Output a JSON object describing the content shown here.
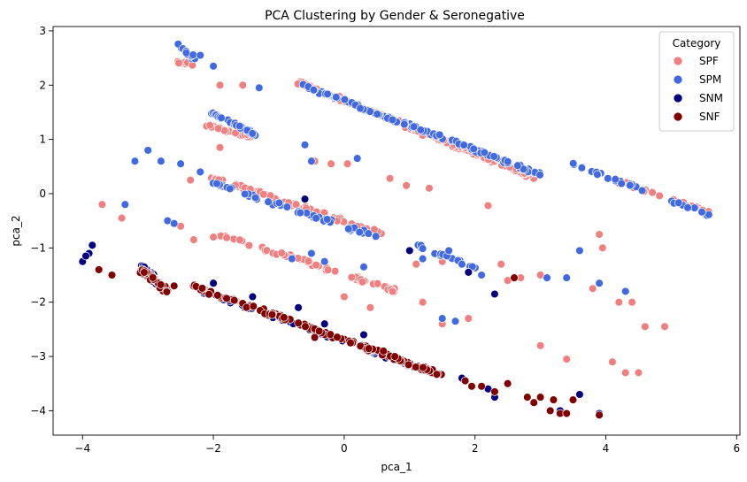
{
  "chart_data": {
    "type": "scatter",
    "title": "PCA Clustering by Gender & Seronegative",
    "xlabel": "pca_1",
    "ylabel": "pca_2",
    "xlim": [
      -4.45,
      6.05
    ],
    "ylim": [
      -4.45,
      3.08
    ],
    "xticks": [
      -4,
      -2,
      0,
      2,
      4,
      6
    ],
    "yticks": [
      -4,
      -3,
      -2,
      -1,
      0,
      1,
      2,
      3
    ],
    "grid": false,
    "legend": {
      "title": "Category",
      "placement": "top-right",
      "entries": [
        "SPF",
        "SPM",
        "SNM",
        "SNF"
      ]
    },
    "series": [
      {
        "name": "SPF",
        "color": "#f08080",
        "clusters": [
          {
            "from": [
              -0.7,
              2.05
            ],
            "to": [
              2.9,
              0.3
            ],
            "n": 170,
            "spread": 0.05
          },
          {
            "from": [
              -2.1,
              1.25
            ],
            "to": [
              -1.4,
              1.05
            ],
            "n": 40,
            "spread": 0.05
          },
          {
            "from": [
              -2.0,
              0.3
            ],
            "to": [
              0.6,
              -0.75
            ],
            "n": 70,
            "spread": 0.06
          },
          {
            "from": [
              -1.9,
              -0.75
            ],
            "to": [
              0.8,
              -1.8
            ],
            "n": 60,
            "spread": 0.06
          },
          {
            "from": [
              -2.6,
              2.45
            ],
            "to": [
              -2.3,
              2.35
            ],
            "n": 10,
            "spread": 0.04
          },
          {
            "from": [
              4.0,
              0.3
            ],
            "to": [
              5.6,
              -0.35
            ],
            "n": 20,
            "spread": 0.05
          }
        ],
        "points": [
          [
            -3.7,
            -0.2
          ],
          [
            -3.4,
            -0.45
          ],
          [
            -1.9,
            0.85
          ],
          [
            -1.55,
            2.0
          ],
          [
            -1.9,
            2.0
          ],
          [
            0.7,
            0.28
          ],
          [
            1.3,
            0.1
          ],
          [
            0.95,
            0.15
          ],
          [
            2.2,
            -0.22
          ],
          [
            1.1,
            -1.3
          ],
          [
            1.5,
            -1.25
          ],
          [
            2.4,
            -1.3
          ],
          [
            2.7,
            -1.55
          ],
          [
            3.0,
            -1.5
          ],
          [
            2.5,
            -1.6
          ],
          [
            3.0,
            -2.8
          ],
          [
            3.4,
            -3.05
          ],
          [
            4.1,
            -3.1
          ],
          [
            4.5,
            -3.3
          ],
          [
            4.3,
            -3.3
          ],
          [
            4.6,
            -2.45
          ],
          [
            4.9,
            -2.45
          ],
          [
            3.8,
            -1.75
          ],
          [
            4.2,
            -2.0
          ],
          [
            4.4,
            -2.0
          ],
          [
            3.9,
            -0.75
          ],
          [
            3.95,
            -1.0
          ],
          [
            -0.2,
            0.55
          ],
          [
            0.05,
            0.55
          ],
          [
            -0.45,
            0.6
          ],
          [
            0.0,
            -1.9
          ],
          [
            0.4,
            -2.1
          ],
          [
            1.9,
            -2.3
          ],
          [
            1.5,
            -2.4
          ],
          [
            1.2,
            -2.0
          ],
          [
            -2.35,
            0.25
          ],
          [
            -2.5,
            -0.6
          ],
          [
            -2.3,
            -0.85
          ],
          [
            -2.0,
            -0.8
          ]
        ]
      },
      {
        "name": "SPM",
        "color": "#4169e1",
        "clusters": [
          {
            "from": [
              -0.75,
              2.05
            ],
            "to": [
              3.0,
              0.35
            ],
            "n": 130,
            "spread": 0.05
          },
          {
            "from": [
              -2.05,
              1.5
            ],
            "to": [
              -1.3,
              1.05
            ],
            "n": 35,
            "spread": 0.05
          },
          {
            "from": [
              -2.0,
              0.2
            ],
            "to": [
              0.5,
              -0.8
            ],
            "n": 50,
            "spread": 0.05
          },
          {
            "from": [
              -2.55,
              2.75
            ],
            "to": [
              -2.3,
              2.5
            ],
            "n": 12,
            "spread": 0.04
          },
          {
            "from": [
              3.5,
              0.55
            ],
            "to": [
              5.6,
              -0.4
            ],
            "n": 28,
            "spread": 0.05
          },
          {
            "from": [
              1.1,
              -0.95
            ],
            "to": [
              2.1,
              -1.4
            ],
            "n": 18,
            "spread": 0.05
          }
        ],
        "points": [
          [
            -3.2,
            0.6
          ],
          [
            -3.0,
            0.8
          ],
          [
            -2.8,
            0.6
          ],
          [
            -3.35,
            -0.2
          ],
          [
            -2.7,
            -0.5
          ],
          [
            -2.6,
            -0.55
          ],
          [
            -2.2,
            2.55
          ],
          [
            -2.0,
            2.35
          ],
          [
            -1.3,
            1.95
          ],
          [
            -0.6,
            0.9
          ],
          [
            -0.5,
            0.6
          ],
          [
            0.2,
            0.65
          ],
          [
            0.3,
            -1.35
          ],
          [
            -0.5,
            -1.1
          ],
          [
            -0.8,
            -1.2
          ],
          [
            -0.3,
            -1.25
          ],
          [
            1.2,
            -1.2
          ],
          [
            1.6,
            -1.05
          ],
          [
            1.8,
            -1.3
          ],
          [
            2.1,
            -1.5
          ],
          [
            3.1,
            -1.55
          ],
          [
            3.4,
            -1.55
          ],
          [
            3.6,
            -1.05
          ],
          [
            3.9,
            -1.65
          ],
          [
            4.3,
            -1.8
          ],
          [
            1.5,
            -2.3
          ],
          [
            1.7,
            -2.35
          ],
          [
            -2.2,
            0.4
          ],
          [
            -2.5,
            0.55
          ]
        ]
      },
      {
        "name": "SNM",
        "color": "#000080",
        "clusters": [
          {
            "from": [
              -3.1,
              -1.35
            ],
            "to": [
              -2.7,
              -1.8
            ],
            "n": 35,
            "spread": 0.07
          },
          {
            "from": [
              -2.3,
              -1.75
            ],
            "to": [
              1.5,
              -3.35
            ],
            "n": 50,
            "spread": 0.06
          }
        ],
        "points": [
          [
            -4.0,
            -1.25
          ],
          [
            -3.9,
            -1.1
          ],
          [
            -3.85,
            -0.95
          ],
          [
            -3.95,
            -1.15
          ],
          [
            -2.0,
            -1.65
          ],
          [
            -1.4,
            -1.9
          ],
          [
            -0.7,
            -2.1
          ],
          [
            -0.6,
            -0.1
          ],
          [
            -0.3,
            -2.4
          ],
          [
            0.3,
            -2.6
          ],
          [
            1.0,
            -1.05
          ],
          [
            1.8,
            -3.4
          ],
          [
            2.2,
            -3.6
          ],
          [
            2.3,
            -3.75
          ],
          [
            3.6,
            -3.7
          ],
          [
            3.3,
            -4.0
          ],
          [
            3.9,
            -4.05
          ],
          [
            2.3,
            -1.85
          ],
          [
            1.9,
            -1.45
          ]
        ]
      },
      {
        "name": "SNF",
        "color": "#800000",
        "clusters": [
          {
            "from": [
              -3.1,
              -1.4
            ],
            "to": [
              -2.7,
              -1.8
            ],
            "n": 50,
            "spread": 0.07
          },
          {
            "from": [
              -2.3,
              -1.7
            ],
            "to": [
              1.5,
              -3.35
            ],
            "n": 140,
            "spread": 0.06
          }
        ],
        "points": [
          [
            -3.75,
            -1.4
          ],
          [
            -3.55,
            -1.5
          ],
          [
            -2.6,
            -1.7
          ],
          [
            -0.45,
            -2.65
          ],
          [
            0.6,
            -2.9
          ],
          [
            1.85,
            -3.45
          ],
          [
            1.95,
            -3.55
          ],
          [
            2.1,
            -3.55
          ],
          [
            2.3,
            -3.65
          ],
          [
            2.5,
            -3.5
          ],
          [
            2.8,
            -3.75
          ],
          [
            2.9,
            -3.85
          ],
          [
            3.0,
            -3.75
          ],
          [
            3.15,
            -4.0
          ],
          [
            3.2,
            -3.8
          ],
          [
            3.3,
            -4.05
          ],
          [
            3.4,
            -4.05
          ],
          [
            3.5,
            -3.8
          ],
          [
            3.9,
            -4.08
          ],
          [
            2.6,
            -1.55
          ]
        ]
      }
    ]
  }
}
